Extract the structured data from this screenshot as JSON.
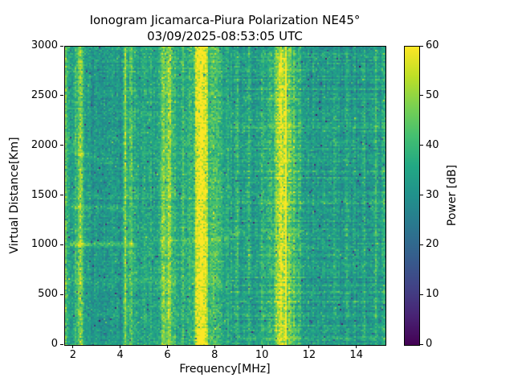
{
  "chart_data": {
    "type": "heatmap",
    "title": "Ionogram Jicamarca-Piura Polarization NE45°",
    "subtitle": "03/09/2025-08:53:05 UTC",
    "xlabel": "Frequency[MHz]",
    "ylabel": "Virtual Distance[Km]",
    "colorbar_label": "Power [dB]",
    "xlim": [
      1.63,
      15.2
    ],
    "ylim": [
      0,
      3000
    ],
    "clim": [
      0,
      60
    ],
    "xticks": [
      2,
      4,
      6,
      8,
      10,
      12,
      14
    ],
    "yticks": [
      0,
      500,
      1000,
      1500,
      2000,
      2500,
      3000
    ],
    "cticks": [
      0,
      10,
      20,
      30,
      40,
      50,
      60
    ],
    "grid": false,
    "colormap": {
      "name": "viridis",
      "stops": [
        [
          0.0,
          "#440154"
        ],
        [
          0.1,
          "#482475"
        ],
        [
          0.2,
          "#414487"
        ],
        [
          0.3,
          "#355f8d"
        ],
        [
          0.4,
          "#2a788e"
        ],
        [
          0.5,
          "#21918c"
        ],
        [
          0.6,
          "#22a884"
        ],
        [
          0.7,
          "#44bf70"
        ],
        [
          0.8,
          "#7ad151"
        ],
        [
          0.9,
          "#bddf26"
        ],
        [
          1.0,
          "#fde725"
        ]
      ]
    },
    "background_noise": {
      "base_db": 33.5,
      "cell_sd_db": 3.6,
      "column_sd_db": 1.4,
      "row_sd_db_low": 1.0,
      "row_sd_db_high": 2.1,
      "high_band_start_mhz": 8.6,
      "quiet_band_mhz": [
        2.45,
        4.05
      ],
      "quiet_offset_db": -2.5,
      "hf_band_mhz": [
        11.6,
        15.2
      ],
      "hf_offset_db": -1.0,
      "dark_speckle_prob": 0.012,
      "bright_speckle_prob": 0.006
    },
    "rfi_stripes": [
      {
        "f_mhz": 1.68,
        "amp_db": 13,
        "sigma_mhz": 0.05
      },
      {
        "f_mhz": 2.1,
        "amp_db": 6,
        "sigma_mhz": 0.04
      },
      {
        "f_mhz": 2.27,
        "amp_db": 15,
        "sigma_mhz": 0.06
      },
      {
        "f_mhz": 2.65,
        "amp_db": 6,
        "sigma_mhz": 0.04
      },
      {
        "f_mhz": 3.05,
        "amp_db": 4,
        "sigma_mhz": 0.04
      },
      {
        "f_mhz": 3.35,
        "amp_db": 4,
        "sigma_mhz": 0.04
      },
      {
        "f_mhz": 3.6,
        "amp_db": 3,
        "sigma_mhz": 0.04
      },
      {
        "f_mhz": 4.17,
        "amp_db": 12,
        "sigma_mhz": 0.05
      },
      {
        "f_mhz": 4.42,
        "amp_db": 8,
        "sigma_mhz": 0.06
      },
      {
        "f_mhz": 4.62,
        "amp_db": 5,
        "sigma_mhz": 0.04
      },
      {
        "f_mhz": 5.0,
        "amp_db": 5,
        "sigma_mhz": 0.04
      },
      {
        "f_mhz": 5.25,
        "amp_db": 4,
        "sigma_mhz": 0.04
      },
      {
        "f_mhz": 5.78,
        "amp_db": 13,
        "sigma_mhz": 0.08
      },
      {
        "f_mhz": 6.02,
        "amp_db": 15,
        "sigma_mhz": 0.07
      },
      {
        "f_mhz": 6.25,
        "amp_db": 7,
        "sigma_mhz": 0.05
      },
      {
        "f_mhz": 6.6,
        "amp_db": 6,
        "sigma_mhz": 0.05
      },
      {
        "f_mhz": 6.9,
        "amp_db": 7,
        "sigma_mhz": 0.05
      },
      {
        "f_mhz": 7.18,
        "amp_db": 11,
        "sigma_mhz": 0.07
      },
      {
        "f_mhz": 7.38,
        "amp_db": 26,
        "sigma_mhz": 0.11
      },
      {
        "f_mhz": 7.58,
        "amp_db": 15,
        "sigma_mhz": 0.06
      },
      {
        "f_mhz": 7.9,
        "amp_db": 9,
        "sigma_mhz": 0.09
      },
      {
        "f_mhz": 8.15,
        "amp_db": 7,
        "sigma_mhz": 0.07
      },
      {
        "f_mhz": 8.5,
        "amp_db": 6,
        "sigma_mhz": 0.05
      },
      {
        "f_mhz": 8.9,
        "amp_db": 8,
        "sigma_mhz": 0.04
      },
      {
        "f_mhz": 9.4,
        "amp_db": 7,
        "sigma_mhz": 0.05
      },
      {
        "f_mhz": 9.95,
        "amp_db": 5,
        "sigma_mhz": 0.05
      },
      {
        "f_mhz": 10.3,
        "amp_db": 6,
        "sigma_mhz": 0.05
      },
      {
        "f_mhz": 10.62,
        "amp_db": 13,
        "sigma_mhz": 0.09
      },
      {
        "f_mhz": 10.78,
        "amp_db": 17,
        "sigma_mhz": 0.06
      },
      {
        "f_mhz": 10.95,
        "amp_db": 26,
        "sigma_mhz": 0.05
      },
      {
        "f_mhz": 11.12,
        "amp_db": 15,
        "sigma_mhz": 0.04
      },
      {
        "f_mhz": 11.3,
        "amp_db": 9,
        "sigma_mhz": 0.05
      },
      {
        "f_mhz": 11.55,
        "amp_db": 6,
        "sigma_mhz": 0.04
      },
      {
        "f_mhz": 12.1,
        "amp_db": 4,
        "sigma_mhz": 0.04
      },
      {
        "f_mhz": 12.55,
        "amp_db": 5,
        "sigma_mhz": 0.04
      },
      {
        "f_mhz": 13.05,
        "amp_db": 4,
        "sigma_mhz": 0.04
      },
      {
        "f_mhz": 13.55,
        "amp_db": 4,
        "sigma_mhz": 0.04
      },
      {
        "f_mhz": 14.25,
        "amp_db": 5,
        "sigma_mhz": 0.04
      },
      {
        "f_mhz": 14.75,
        "amp_db": 5,
        "sigma_mhz": 0.05
      },
      {
        "f_mhz": 15.1,
        "amp_db": 6,
        "sigma_mhz": 0.05
      }
    ],
    "rfi_glows": [
      {
        "f_mhz": 7.38,
        "amp_db": 6,
        "sigma_mhz": 0.38
      },
      {
        "f_mhz": 10.82,
        "amp_db": 7,
        "sigma_mhz": 0.42
      },
      {
        "f_mhz": 6.0,
        "amp_db": 4,
        "sigma_mhz": 0.28
      },
      {
        "f_mhz": 2.27,
        "amp_db": 3,
        "sigma_mhz": 0.18
      },
      {
        "f_mhz": 4.3,
        "amp_db": 2,
        "sigma_mhz": 0.25
      }
    ],
    "echo_traces": [
      {
        "d_start_km": 1020,
        "d_end_km": 1020,
        "f1_mhz": 1.85,
        "f2_mhz": 4.55,
        "amp_db": 12,
        "sigma_km": 16
      },
      {
        "d_start_km": 1050,
        "d_end_km": 1070,
        "f1_mhz": 5.55,
        "f2_mhz": 8.35,
        "amp_db": 6,
        "sigma_km": 14
      },
      {
        "d_start_km": 1060,
        "d_end_km": 1150,
        "f1_mhz": 8.35,
        "f2_mhz": 9.05,
        "amp_db": 9,
        "sigma_km": 14
      },
      {
        "d_start_km": 1390,
        "d_end_km": 1370,
        "f1_mhz": 1.85,
        "f2_mhz": 4.15,
        "amp_db": 6,
        "sigma_km": 18
      },
      {
        "d_start_km": 1950,
        "d_end_km": 1840,
        "f1_mhz": 1.85,
        "f2_mhz": 3.65,
        "amp_db": 6,
        "sigma_km": 20
      },
      {
        "d_start_km": 10,
        "d_end_km": 10,
        "f1_mhz": 1.63,
        "f2_mhz": 15.2,
        "amp_db": 5,
        "sigma_km": 14
      }
    ]
  }
}
